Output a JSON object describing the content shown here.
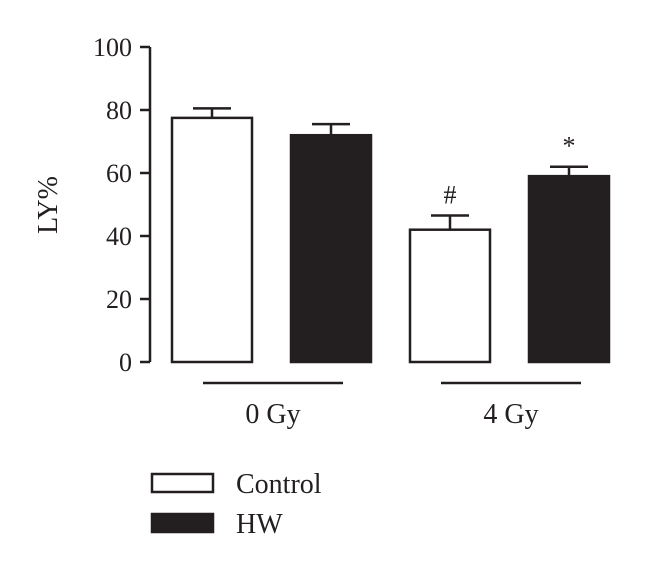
{
  "chart_data": {
    "type": "bar",
    "ylabel": "LY%",
    "ylim": [
      0,
      100
    ],
    "yticks": [
      0,
      20,
      40,
      60,
      80,
      100
    ],
    "groups": [
      "0 Gy",
      "4 Gy"
    ],
    "series": [
      {
        "name": "Control",
        "values": [
          77.5,
          42
        ],
        "errors": [
          3,
          4.5
        ],
        "fill": "#ffffff"
      },
      {
        "name": "HW",
        "values": [
          72,
          59
        ],
        "errors": [
          3.5,
          3
        ],
        "fill": "#231f20"
      }
    ],
    "annotations": [
      {
        "group": 1,
        "series": 0,
        "text": "#"
      },
      {
        "group": 1,
        "series": 1,
        "text": "*"
      }
    ],
    "grid": false,
    "legend_position": "bottom-left"
  },
  "colors": {
    "ink": "#231f20",
    "background": "#ffffff"
  }
}
